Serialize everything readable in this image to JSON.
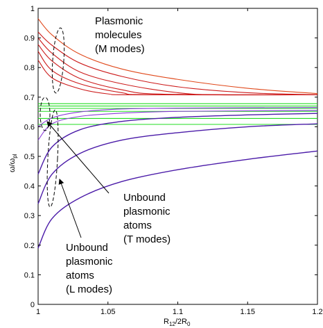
{
  "chart_data": {
    "type": "line",
    "xlabel": {
      "main": "R",
      "sub1": "12",
      "mid": "/2R",
      "sub2": "0"
    },
    "ylabel": {
      "main": "ω/ω",
      "sub": "pl"
    },
    "xlim": [
      1.0,
      1.2
    ],
    "ylim": [
      0.0,
      1.0
    ],
    "xticks": [
      1,
      1.05,
      1.1,
      1.15,
      1.2
    ],
    "xtick_labels": [
      "1",
      "1.05",
      "1.1",
      "1.15",
      "1.2"
    ],
    "yticks": [
      0,
      0.1,
      0.2,
      0.3,
      0.4,
      0.5,
      0.6,
      0.7,
      0.8,
      0.9,
      1
    ],
    "ytick_labels": [
      "0",
      "0.1",
      "0.2",
      "0.3",
      "0.4",
      "0.5",
      "0.6",
      "0.7",
      "0.8",
      "0.9",
      "1"
    ],
    "grid": false,
    "colors": {
      "m_modes": "#cc1a1a",
      "m_modes_top": "#e0481a",
      "t_modes": "#22dd22",
      "l_modes": "#4a1aa8",
      "l_modes_light": "#8a3ad8",
      "ellipse": "#000000"
    },
    "series": [
      {
        "group": "M",
        "points": [
          [
            1.0,
            0.965
          ],
          [
            1.01,
            0.91
          ],
          [
            1.03,
            0.845
          ],
          [
            1.06,
            0.795
          ],
          [
            1.1,
            0.76
          ],
          [
            1.15,
            0.73
          ],
          [
            1.2,
            0.712
          ]
        ]
      },
      {
        "group": "M",
        "points": [
          [
            1.0,
            0.92
          ],
          [
            1.01,
            0.875
          ],
          [
            1.03,
            0.815
          ],
          [
            1.06,
            0.77
          ],
          [
            1.1,
            0.735
          ],
          [
            1.15,
            0.715
          ],
          [
            1.2,
            0.708
          ]
        ]
      },
      {
        "group": "M",
        "points": [
          [
            1.0,
            0.9
          ],
          [
            1.01,
            0.848
          ],
          [
            1.03,
            0.785
          ],
          [
            1.06,
            0.745
          ],
          [
            1.1,
            0.715
          ],
          [
            1.13,
            0.708
          ],
          [
            1.2,
            0.708
          ]
        ]
      },
      {
        "group": "M",
        "points": [
          [
            1.0,
            0.878
          ],
          [
            1.01,
            0.822
          ],
          [
            1.03,
            0.763
          ],
          [
            1.06,
            0.725
          ],
          [
            1.09,
            0.71
          ],
          [
            1.2,
            0.708
          ]
        ]
      },
      {
        "group": "M",
        "points": [
          [
            1.0,
            0.855
          ],
          [
            1.01,
            0.79
          ],
          [
            1.03,
            0.745
          ],
          [
            1.06,
            0.715
          ],
          [
            1.08,
            0.708
          ],
          [
            1.2,
            0.708
          ]
        ]
      },
      {
        "group": "M",
        "points": [
          [
            1.0,
            0.825
          ],
          [
            1.01,
            0.765
          ],
          [
            1.03,
            0.728
          ],
          [
            1.05,
            0.711
          ],
          [
            1.07,
            0.708
          ],
          [
            1.2,
            0.708
          ]
        ]
      },
      {
        "group": "T",
        "points": [
          [
            1.0,
            0.678
          ],
          [
            1.2,
            0.678
          ]
        ]
      },
      {
        "group": "T",
        "points": [
          [
            1.0,
            0.67
          ],
          [
            1.2,
            0.67
          ]
        ]
      },
      {
        "group": "T",
        "points": [
          [
            1.0,
            0.662
          ],
          [
            1.2,
            0.662
          ]
        ]
      },
      {
        "group": "T",
        "points": [
          [
            1.0,
            0.652
          ],
          [
            1.2,
            0.652
          ]
        ]
      },
      {
        "group": "T",
        "points": [
          [
            1.0,
            0.628
          ],
          [
            1.2,
            0.628
          ]
        ]
      },
      {
        "group": "T",
        "points": [
          [
            1.0,
            0.608
          ],
          [
            1.2,
            0.608
          ]
        ]
      },
      {
        "group": "L",
        "points": [
          [
            1.0,
            0.6
          ],
          [
            1.01,
            0.63
          ],
          [
            1.03,
            0.65
          ],
          [
            1.06,
            0.66
          ],
          [
            1.1,
            0.663
          ],
          [
            1.2,
            0.665
          ]
        ]
      },
      {
        "group": "L",
        "points": [
          [
            1.0,
            0.555
          ],
          [
            1.01,
            0.61
          ],
          [
            1.03,
            0.635
          ],
          [
            1.06,
            0.646
          ],
          [
            1.1,
            0.652
          ],
          [
            1.2,
            0.655
          ]
        ]
      },
      {
        "group": "L",
        "points": [
          [
            1.0,
            0.44
          ],
          [
            1.01,
            0.532
          ],
          [
            1.03,
            0.59
          ],
          [
            1.06,
            0.618
          ],
          [
            1.1,
            0.632
          ],
          [
            1.15,
            0.64
          ],
          [
            1.2,
            0.645
          ]
        ]
      },
      {
        "group": "L",
        "points": [
          [
            1.0,
            0.34
          ],
          [
            1.01,
            0.44
          ],
          [
            1.03,
            0.51
          ],
          [
            1.06,
            0.555
          ],
          [
            1.1,
            0.58
          ],
          [
            1.15,
            0.6
          ],
          [
            1.2,
            0.61
          ]
        ]
      },
      {
        "group": "L",
        "points": [
          [
            1.0,
            0.19
          ],
          [
            1.01,
            0.29
          ],
          [
            1.03,
            0.36
          ],
          [
            1.06,
            0.415
          ],
          [
            1.1,
            0.455
          ],
          [
            1.15,
            0.49
          ],
          [
            1.2,
            0.518
          ]
        ]
      }
    ],
    "annotations": [
      {
        "lines": [
          "Plasmonic",
          "molecules",
          "(M modes)"
        ]
      },
      {
        "lines": [
          "Unbound",
          "plasmonic",
          "atoms",
          "(T  modes)"
        ]
      },
      {
        "lines": [
          "Unbound",
          "plasmonic",
          "atoms",
          "(L modes)"
        ]
      }
    ]
  }
}
